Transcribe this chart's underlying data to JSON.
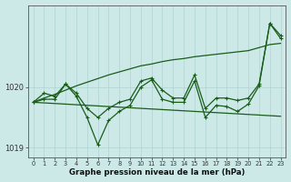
{
  "x": [
    0,
    1,
    2,
    3,
    4,
    5,
    6,
    7,
    8,
    9,
    10,
    11,
    12,
    13,
    14,
    15,
    16,
    17,
    18,
    19,
    20,
    21,
    22,
    23
  ],
  "line1": [
    1019.75,
    1019.9,
    1019.85,
    1020.05,
    1019.9,
    1019.65,
    1019.5,
    1019.65,
    1019.75,
    1019.8,
    1020.1,
    1020.15,
    1019.95,
    1019.82,
    1019.82,
    1020.2,
    1019.65,
    1019.82,
    1019.82,
    1019.78,
    1019.82,
    1020.05,
    1021.05,
    1020.85
  ],
  "line2": [
    1019.75,
    1019.8,
    1019.8,
    1020.05,
    1019.85,
    1019.5,
    1019.05,
    1019.45,
    1019.6,
    1019.7,
    1020.0,
    1020.12,
    1019.8,
    1019.75,
    1019.75,
    1020.1,
    1019.5,
    1019.7,
    1019.68,
    1019.6,
    1019.72,
    1020.02,
    1021.05,
    1020.8
  ],
  "upper_env": [
    1019.75,
    1019.82,
    1019.88,
    1019.95,
    1020.02,
    1020.08,
    1020.14,
    1020.2,
    1020.25,
    1020.3,
    1020.35,
    1020.38,
    1020.42,
    1020.45,
    1020.47,
    1020.5,
    1020.52,
    1020.54,
    1020.56,
    1020.58,
    1020.6,
    1020.65,
    1020.7,
    1020.72
  ],
  "lower_env": [
    1019.75,
    1019.74,
    1019.73,
    1019.72,
    1019.71,
    1019.7,
    1019.69,
    1019.68,
    1019.67,
    1019.66,
    1019.65,
    1019.64,
    1019.63,
    1019.62,
    1019.61,
    1019.6,
    1019.59,
    1019.58,
    1019.57,
    1019.56,
    1019.55,
    1019.54,
    1019.53,
    1019.52
  ],
  "bg_color": "#cce9e8",
  "line_color": "#1a5c1a",
  "grid_color": "#aed4d3",
  "xlabel": "Graphe pression niveau de la mer (hPa)",
  "ylim_min": 1018.85,
  "ylim_max": 1021.35,
  "yticks": [
    1019,
    1020
  ],
  "xticks": [
    0,
    1,
    2,
    3,
    4,
    5,
    6,
    7,
    8,
    9,
    10,
    11,
    12,
    13,
    14,
    15,
    16,
    17,
    18,
    19,
    20,
    21,
    22,
    23
  ]
}
